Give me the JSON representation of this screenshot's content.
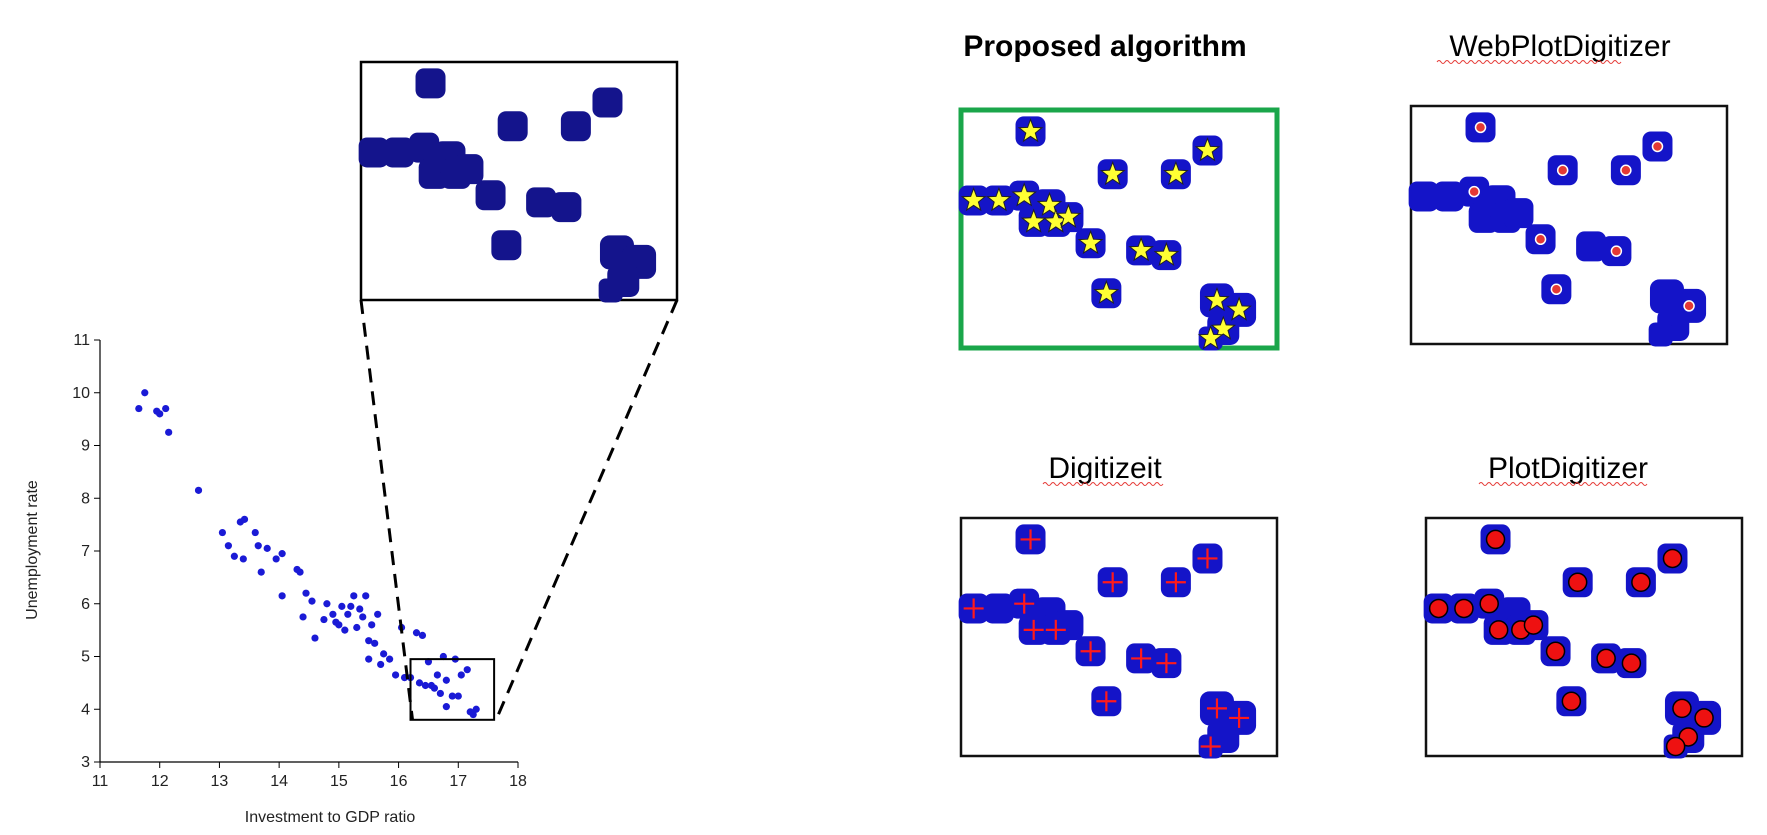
{
  "chart_data": {
    "type": "scatter",
    "xlabel": "Investment to GDP ratio",
    "ylabel": "Unemployment rate",
    "xlim": [
      11,
      18
    ],
    "ylim": [
      3,
      11
    ],
    "xticks": [
      "11",
      "12",
      "13",
      "14",
      "15",
      "16",
      "17",
      "18"
    ],
    "yticks": [
      "3",
      "4",
      "5",
      "6",
      "7",
      "8",
      "9",
      "10",
      "11"
    ],
    "grid": false,
    "point_color": "#1a1ad6",
    "zoom_box": {
      "x_range": [
        16.2,
        17.6
      ],
      "y_range": [
        3.8,
        4.95
      ]
    },
    "points": [
      [
        11.65,
        9.7
      ],
      [
        11.75,
        10.0
      ],
      [
        11.95,
        9.65
      ],
      [
        12.0,
        9.6
      ],
      [
        12.1,
        9.7
      ],
      [
        12.15,
        9.25
      ],
      [
        12.65,
        8.15
      ],
      [
        13.05,
        7.35
      ],
      [
        13.15,
        7.1
      ],
      [
        13.25,
        6.9
      ],
      [
        13.35,
        7.55
      ],
      [
        13.42,
        7.6
      ],
      [
        13.4,
        6.85
      ],
      [
        13.6,
        7.35
      ],
      [
        13.65,
        7.1
      ],
      [
        13.7,
        6.6
      ],
      [
        13.8,
        7.05
      ],
      [
        13.95,
        6.85
      ],
      [
        14.05,
        6.95
      ],
      [
        14.05,
        6.15
      ],
      [
        14.3,
        6.65
      ],
      [
        14.35,
        6.6
      ],
      [
        14.4,
        5.75
      ],
      [
        14.45,
        6.2
      ],
      [
        14.55,
        6.05
      ],
      [
        14.6,
        5.35
      ],
      [
        14.75,
        5.7
      ],
      [
        14.8,
        6.0
      ],
      [
        14.9,
        5.8
      ],
      [
        14.95,
        5.65
      ],
      [
        15.0,
        5.6
      ],
      [
        15.05,
        5.95
      ],
      [
        15.1,
        5.5
      ],
      [
        15.15,
        5.8
      ],
      [
        15.2,
        5.95
      ],
      [
        15.25,
        6.15
      ],
      [
        15.3,
        5.55
      ],
      [
        15.35,
        5.9
      ],
      [
        15.4,
        5.75
      ],
      [
        15.45,
        6.15
      ],
      [
        15.5,
        5.3
      ],
      [
        15.5,
        4.95
      ],
      [
        15.55,
        5.6
      ],
      [
        15.6,
        5.25
      ],
      [
        15.65,
        5.8
      ],
      [
        15.7,
        4.85
      ],
      [
        15.75,
        5.05
      ],
      [
        15.85,
        4.95
      ],
      [
        15.95,
        4.65
      ],
      [
        16.05,
        5.55
      ],
      [
        16.1,
        4.6
      ],
      [
        16.2,
        4.6
      ],
      [
        16.3,
        5.45
      ],
      [
        16.35,
        4.5
      ],
      [
        16.4,
        5.4
      ],
      [
        16.45,
        4.45
      ],
      [
        16.5,
        4.9
      ],
      [
        16.55,
        4.45
      ],
      [
        16.6,
        4.4
      ],
      [
        16.65,
        4.65
      ],
      [
        16.7,
        4.3
      ],
      [
        16.75,
        5.0
      ],
      [
        16.8,
        4.55
      ],
      [
        16.8,
        4.05
      ],
      [
        16.9,
        4.25
      ],
      [
        16.95,
        4.95
      ],
      [
        17.0,
        4.25
      ],
      [
        17.05,
        4.65
      ],
      [
        17.15,
        4.75
      ],
      [
        17.2,
        3.95
      ],
      [
        17.25,
        3.9
      ],
      [
        17.3,
        4.0
      ]
    ]
  },
  "panels": {
    "proposed": {
      "title": "Proposed algorithm",
      "border_color": "#1aa64a",
      "marker": "star",
      "marker_color": "#ffff33"
    },
    "webplot": {
      "title": "WebPlotDigitizer",
      "marker": "dot",
      "marker_color": "#e53935"
    },
    "digitizeit": {
      "title": "Digitizeit",
      "marker": "cross",
      "marker_color": "#ff1a1a"
    },
    "plotdigitizer": {
      "title": "PlotDigitizer",
      "marker": "circle",
      "marker_color": "#ee1111"
    }
  }
}
